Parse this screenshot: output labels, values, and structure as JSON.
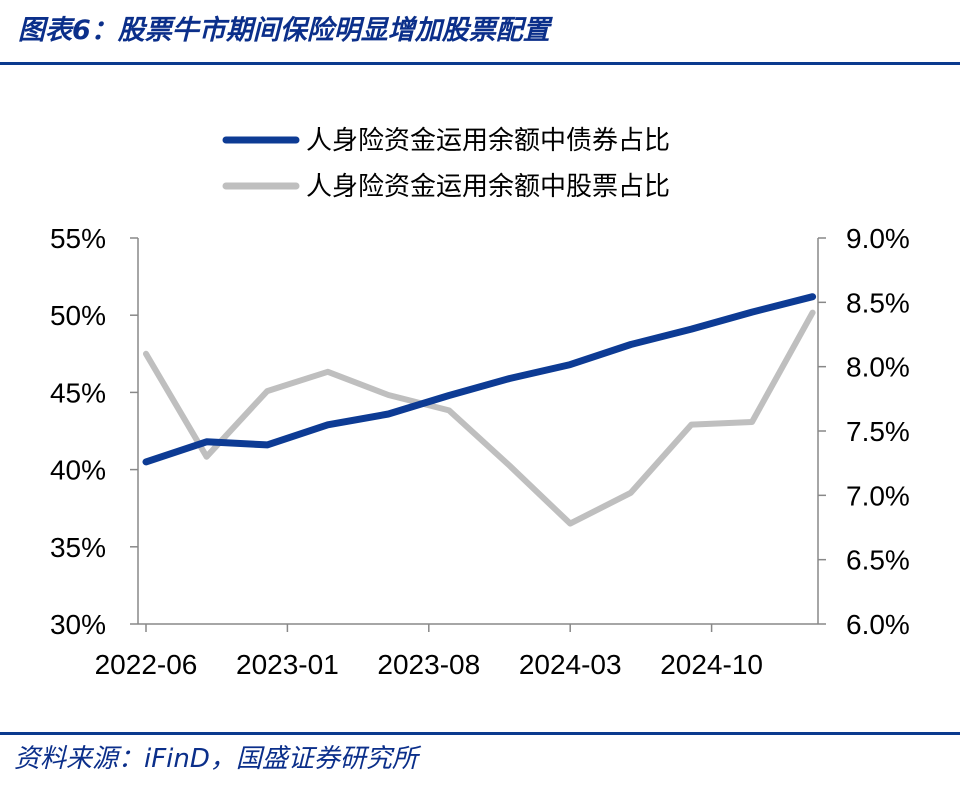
{
  "header": {
    "title": "图表6：股票牛市期间保险明显增加股票配置"
  },
  "footer": {
    "source": "资料来源：iFinD，国盛证券研究所"
  },
  "colors": {
    "title": "#0b2f8a",
    "rule": "#0b3a8e",
    "bond_series": "#0d3b94",
    "stock_series": "#bfbfbf",
    "axis": "#888888"
  },
  "chart_data": {
    "type": "line",
    "title": "",
    "legend_position": "top-center",
    "grid": false,
    "x_tick_labels": [
      "2022-06",
      "2023-01",
      "2023-08",
      "2024-03",
      "2024-10"
    ],
    "x": [
      "2022-06",
      "2022-09",
      "2022-12",
      "2023-03",
      "2023-06",
      "2023-09",
      "2023-12",
      "2024-03",
      "2024-06",
      "2024-09",
      "2024-12",
      "2025-03"
    ],
    "left_axis": {
      "ticks": [
        "30%",
        "35%",
        "40%",
        "45%",
        "50%",
        "55%"
      ],
      "ylim": [
        30,
        55
      ]
    },
    "right_axis": {
      "ticks": [
        "6.0%",
        "6.5%",
        "7.0%",
        "7.5%",
        "8.0%",
        "8.5%",
        "9.0%"
      ],
      "ylim": [
        6.0,
        9.0
      ]
    },
    "series": [
      {
        "name": "人身险资金运用余额中债券占比",
        "axis": "left",
        "color": "#0d3b94",
        "values": [
          40.5,
          41.8,
          41.6,
          42.9,
          43.6,
          44.8,
          45.9,
          46.8,
          48.1,
          49.1,
          50.2,
          51.2
        ]
      },
      {
        "name": "人身险资金运用余额中股票占比",
        "axis": "right",
        "color": "#bfbfbf",
        "values": [
          8.1,
          7.3,
          7.81,
          7.96,
          7.78,
          7.66,
          7.23,
          6.78,
          7.02,
          7.55,
          7.57,
          8.42
        ]
      }
    ]
  }
}
